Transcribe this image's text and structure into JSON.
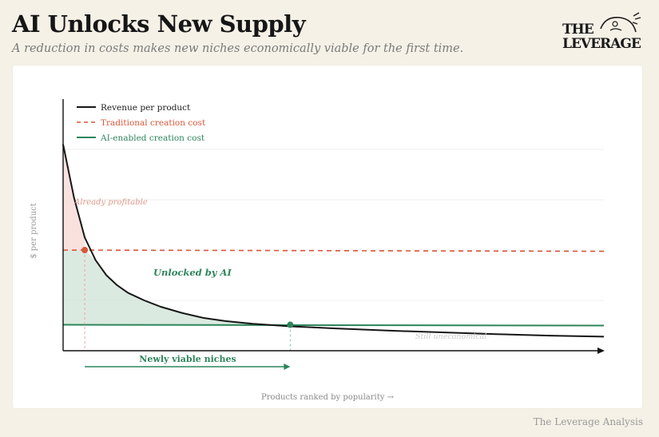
{
  "header": {
    "title": "AI Unlocks New Supply",
    "subtitle": "A reduction in costs makes new niches economically viable for the first time.",
    "logo_text": "THE LEVERAGE",
    "credit": "The Leverage Analysis"
  },
  "colors": {
    "revenue": "#161616",
    "traditional": "#d9573a",
    "ai": "#2e855c",
    "profitable_fill": "#f8dcd8",
    "unlocked_fill": "#cfe3d6",
    "axis": "#111111",
    "grid": "#ededed"
  },
  "chart_data": {
    "type": "line",
    "title": "AI Unlocks New Supply",
    "xlabel": "Products ranked by popularity →",
    "ylabel": "$ per product",
    "x_ticks": "none",
    "y_ticks": "none",
    "grid": true,
    "legend_position": "top-left",
    "xlim": [
      0,
      100
    ],
    "ylim": [
      0,
      100
    ],
    "series": [
      {
        "name": "Revenue per product",
        "style": "solid",
        "points": [
          [
            0,
            82
          ],
          [
            2,
            61
          ],
          [
            4,
            45
          ],
          [
            6,
            36
          ],
          [
            8,
            30
          ],
          [
            10,
            26
          ],
          [
            12,
            23
          ],
          [
            15,
            20
          ],
          [
            18,
            17.5
          ],
          [
            22,
            15
          ],
          [
            26,
            13
          ],
          [
            30,
            11.8
          ],
          [
            35,
            10.7
          ],
          [
            42,
            9.7
          ],
          [
            50,
            8.9
          ],
          [
            60,
            8
          ],
          [
            70,
            7.3
          ],
          [
            80,
            6.6
          ],
          [
            90,
            6
          ],
          [
            100,
            5.6
          ]
        ]
      },
      {
        "name": "Traditional creation cost",
        "style": "dashed",
        "points": [
          [
            0,
            40
          ],
          [
            100,
            39.5
          ]
        ]
      },
      {
        "name": "AI-enabled creation cost",
        "style": "solid",
        "points": [
          [
            0,
            10.3
          ],
          [
            100,
            10
          ]
        ]
      }
    ],
    "markers": [
      {
        "x": 4,
        "y": 40,
        "series": "Traditional creation cost"
      },
      {
        "x": 42,
        "y": 10.3,
        "series": "AI-enabled creation cost"
      }
    ],
    "annotations": [
      {
        "text": "Already profitable",
        "role": "region-profitable"
      },
      {
        "text": "Unlocked by AI",
        "role": "region-unlocked"
      },
      {
        "text": "Still uneconomical",
        "role": "region-uneconomical"
      },
      {
        "text": "Newly viable niches",
        "role": "arrow-label",
        "x_from": 4,
        "x_to": 42
      }
    ]
  }
}
